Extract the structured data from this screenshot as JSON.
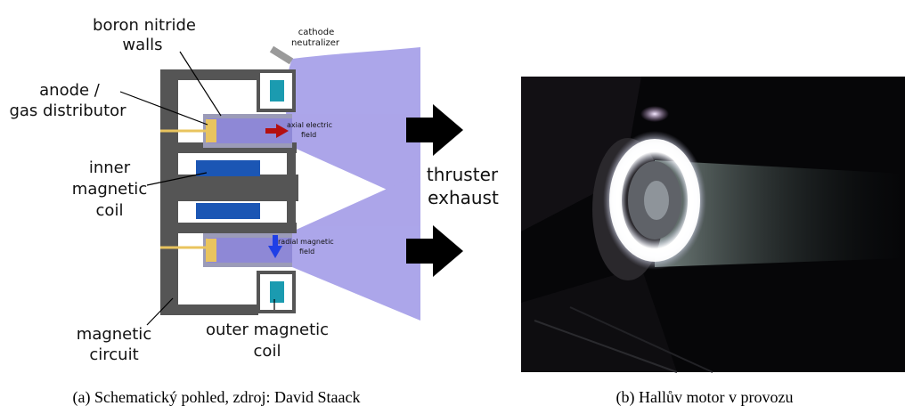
{
  "left_panel": {
    "labels": {
      "boron_nitride_1": "boron nitride",
      "boron_nitride_2": "walls",
      "cathode_1": "cathode",
      "cathode_2": "neutralizer",
      "anode_1": "anode /",
      "anode_2": "gas distributor",
      "axial_1": "axial electric",
      "axial_2": "field",
      "inner_1": "inner",
      "inner_2": "magnetic",
      "inner_3": "coil",
      "thruster_1": "thruster",
      "thruster_2": "exhaust",
      "radial_1": "radial magnetic",
      "radial_2": "field",
      "magnetic_circuit_1": "magnetic",
      "magnetic_circuit_2": "circuit",
      "outer_1": "outer magnetic",
      "outer_2": "coil"
    },
    "caption": "(a)  Schematický pohled, zdroj: David Staack"
  },
  "right_panel": {
    "caption": "(b)  Hallův motor v provozu"
  },
  "colors": {
    "plume": "#9e96e6",
    "wall_gray": "#555555",
    "coil_blue": "#1b56b4",
    "coil_teal": "#1b9bb0",
    "anode_yellow": "#e9c45e",
    "electric_arrow": "#b40f0f",
    "magnetic_arrow": "#1f3fe6"
  }
}
